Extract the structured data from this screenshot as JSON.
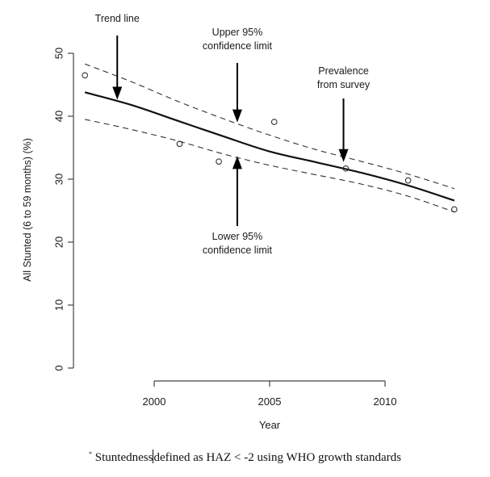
{
  "chart_data": {
    "type": "line",
    "title": "",
    "xlabel": "Year",
    "ylabel": "All Stunted (6 to 59 months) (%)",
    "xlim": [
      1996.5,
      2013.3
    ],
    "ylim": [
      0,
      50
    ],
    "x_ticks": [
      2000,
      2005,
      2010
    ],
    "x_tick_labels": [
      "2000",
      "2005",
      "2010"
    ],
    "y_ticks": [
      0,
      10,
      20,
      30,
      40,
      50
    ],
    "y_tick_labels": [
      "0",
      "10",
      "20",
      "30",
      "40",
      "50"
    ],
    "grid": false,
    "series": [
      {
        "name": "Trend line",
        "style": "solid",
        "x": [
          1997.0,
          1999.0,
          2001.0,
          2003.0,
          2005.0,
          2007.0,
          2009.0,
          2011.0,
          2013.0
        ],
        "y": [
          43.8,
          41.8,
          39.3,
          36.8,
          34.4,
          32.7,
          31.0,
          29.0,
          26.6
        ]
      },
      {
        "name": "Upper 95% confidence limit",
        "style": "dashed",
        "x": [
          1997.0,
          1999.0,
          2001.0,
          2003.0,
          2005.0,
          2007.0,
          2009.0,
          2011.0,
          2013.0
        ],
        "y": [
          48.3,
          45.5,
          42.4,
          39.6,
          37.0,
          34.7,
          32.8,
          30.8,
          28.5
        ]
      },
      {
        "name": "Lower 95% confidence limit",
        "style": "dashed",
        "x": [
          1997.0,
          1999.0,
          2001.0,
          2003.0,
          2005.0,
          2007.0,
          2009.0,
          2011.0,
          2013.0
        ],
        "y": [
          39.5,
          37.9,
          36.1,
          34.0,
          32.2,
          30.7,
          29.2,
          27.3,
          24.8
        ]
      },
      {
        "name": "Prevalence from survey",
        "style": "points",
        "x": [
          1997.0,
          2001.1,
          2002.8,
          2005.2,
          2008.3,
          2011.0,
          2013.0
        ],
        "y": [
          46.5,
          35.6,
          32.8,
          39.1,
          31.7,
          29.8,
          25.2
        ]
      }
    ],
    "annotations": [
      {
        "id": "trend",
        "lines": [
          "Trend line"
        ],
        "x": 1998.4,
        "y": 42.5
      },
      {
        "id": "upper",
        "lines": [
          "Upper 95%",
          "confidence limit"
        ],
        "x": 2003.6,
        "y": 38.9
      },
      {
        "id": "prevalence",
        "lines": [
          "Prevalence",
          "from survey"
        ],
        "x": 2008.2,
        "y": 32.6
      },
      {
        "id": "lower",
        "lines": [
          "Lower 95%",
          "confidence limit"
        ],
        "x": 2003.6,
        "y": 33.8
      }
    ]
  },
  "footnote": {
    "marker": "*",
    "text_before_cursor": "Stuntedness",
    "text_after_cursor": "defined as HAZ < -2 using WHO growth standards"
  }
}
